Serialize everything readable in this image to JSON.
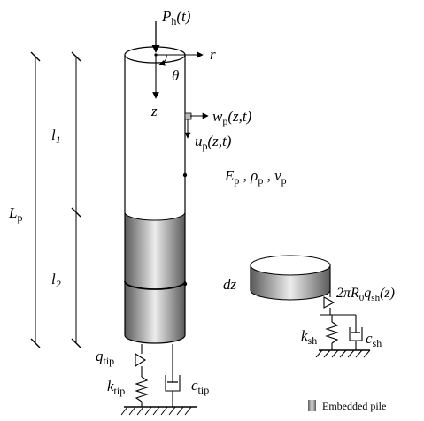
{
  "labels": {
    "P_main": "P",
    "P_sub": "h",
    "P_arg": "(t)",
    "r": "r",
    "theta": "θ",
    "z": "z",
    "w_main": "w",
    "w_sub": "p",
    "w_arg": "(z,t)",
    "u_main": "u",
    "u_sub": "p",
    "u_arg": "(z,t)",
    "E_main": "E",
    "E_sub": "p",
    "sep1": " , ",
    "rho_main": "ρ",
    "rho_sub": "p",
    "sep2": " , ",
    "nu_main": "v",
    "nu_sub": "p",
    "l1_main": "l",
    "l1_sub": "1",
    "l2_main": "l",
    "l2_sub": "2",
    "Lp_main": "L",
    "Lp_sub": "p",
    "dz": "dz",
    "qsh_pre": "2πR",
    "qsh_sub0": "0",
    "qsh_q": "q",
    "qsh_sub": "sh",
    "qsh_arg": "(z)",
    "ksh_main": "k",
    "ksh_sub": "sh",
    "csh_main": "c",
    "csh_sub": "sh",
    "qtip_main": "q",
    "qtip_sub": "tip",
    "ktip_main": "k",
    "ktip_sub": "tip",
    "ctip_main": "c",
    "ctip_sub": "tip"
  },
  "legend": {
    "label": "Embedded pile"
  },
  "colors": {
    "stroke": "#000000",
    "pile_free": "#ffffff",
    "pile_embedded_dark": "#5a5a5a",
    "pile_embedded_light": "#e6e6e6"
  }
}
